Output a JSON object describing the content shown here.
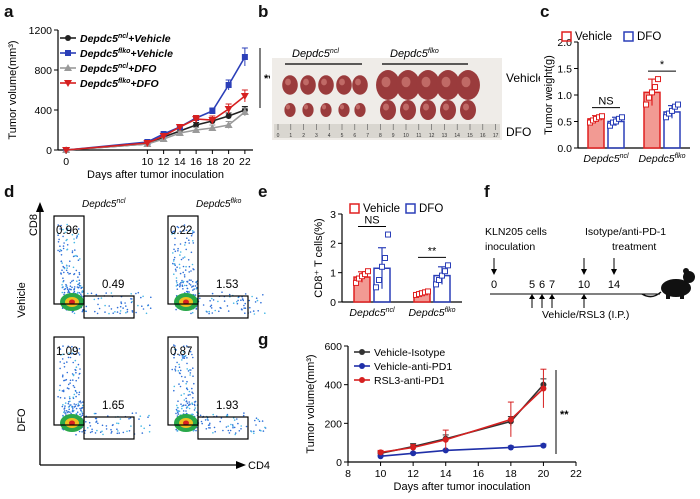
{
  "panel_labels": {
    "a": "a",
    "b": "b",
    "c": "c",
    "d": "d",
    "e": "e",
    "f": "f",
    "g": "g"
  },
  "chart_data": [
    {
      "id": "a",
      "type": "line",
      "ylabel": "Tumor volume(mm³)",
      "xlabel": "Days after tumor inoculation",
      "x": [
        0,
        10,
        12,
        14,
        16,
        18,
        20,
        22
      ],
      "xlim": [
        -1,
        23
      ],
      "ylim": [
        0,
        1200
      ],
      "yticks": [
        "0",
        "400",
        "800",
        "1200"
      ],
      "xticks": [
        "0",
        "10",
        "12",
        "14",
        "16",
        "18",
        "20",
        "22"
      ],
      "series": [
        {
          "name": "Depdc5ncl+Vehicle",
          "base": "Depdc5",
          "sup": "ncl",
          "suffix": "+Vehicle",
          "color": "#222222",
          "marker": "circle",
          "values": [
            0,
            60,
            130,
            190,
            250,
            290,
            340,
            400
          ],
          "errors": [
            0,
            10,
            15,
            20,
            25,
            25,
            30,
            35
          ]
        },
        {
          "name": "Depdc5flko+Vehicle",
          "base": "Depdc5",
          "sup": "flko",
          "suffix": "+Vehicle",
          "color": "#2b3fb8",
          "marker": "square",
          "values": [
            0,
            80,
            160,
            230,
            320,
            390,
            650,
            930
          ],
          "errors": [
            0,
            10,
            15,
            20,
            25,
            30,
            50,
            90
          ]
        },
        {
          "name": "Depdc5ncl+DFO",
          "base": "Depdc5",
          "sup": "ncl",
          "suffix": "+DFO",
          "color": "#9a9a9a",
          "marker": "triangle",
          "values": [
            0,
            60,
            110,
            170,
            200,
            220,
            250,
            380
          ],
          "errors": [
            0,
            10,
            15,
            20,
            25,
            30,
            35,
            40
          ]
        },
        {
          "name": "Depdc5flko+DFO",
          "base": "Depdc5",
          "sup": "flko",
          "suffix": "+DFO",
          "color": "#d62020",
          "marker": "triangledown",
          "values": [
            0,
            70,
            140,
            230,
            310,
            300,
            410,
            540
          ],
          "errors": [
            0,
            10,
            20,
            25,
            35,
            40,
            50,
            60
          ]
        }
      ],
      "annotation": "**"
    },
    {
      "id": "c",
      "type": "bar",
      "ylabel": "Tumor weight(g)",
      "ylim": [
        0,
        2.0
      ],
      "yticks": [
        "0.0",
        "0.5",
        "1.0",
        "1.5",
        "2.0"
      ],
      "legend": [
        "Vehicle",
        "DFO"
      ],
      "groups": [
        {
          "base": "Depdc5",
          "sup": "ncl",
          "vehicle": 0.55,
          "vehicle_err": 0.06,
          "dfo": 0.5,
          "dfo_err": 0.08,
          "vehicle_points": [
            0.48,
            0.52,
            0.55,
            0.58,
            0.6
          ],
          "dfo_points": [
            0.42,
            0.48,
            0.5,
            0.55,
            0.58
          ]
        },
        {
          "base": "Depdc5",
          "sup": "flko",
          "vehicle": 1.05,
          "vehicle_err": 0.25,
          "dfo": 0.68,
          "dfo_err": 0.12,
          "vehicle_points": [
            0.82,
            0.95,
            1.05,
            1.15,
            1.3
          ],
          "dfo_points": [
            0.58,
            0.65,
            0.7,
            0.78,
            0.82
          ]
        }
      ],
      "sig": [
        "NS",
        "*"
      ]
    },
    {
      "id": "e",
      "type": "bar",
      "ylabel": "CD8⁺ T cells(%)",
      "ylim": [
        0,
        3
      ],
      "yticks": [
        "0",
        "1",
        "2",
        "3"
      ],
      "legend": [
        "Vehicle",
        "DFO"
      ],
      "groups": [
        {
          "base": "Depdc5",
          "sup": "ncl",
          "vehicle": 0.85,
          "vehicle_err": 0.18,
          "dfo": 1.15,
          "dfo_err": 0.7,
          "vehicle_points": [
            0.65,
            0.8,
            0.88,
            0.95,
            1.05
          ],
          "dfo_points": [
            0.5,
            0.75,
            1.2,
            1.5,
            2.3
          ]
        },
        {
          "base": "Depdc5",
          "sup": "flko",
          "vehicle": 0.3,
          "vehicle_err": 0.06,
          "dfo": 0.9,
          "dfo_err": 0.3,
          "vehicle_points": [
            0.24,
            0.27,
            0.3,
            0.33,
            0.36
          ],
          "dfo_points": [
            0.6,
            0.75,
            0.9,
            1.05,
            1.25
          ]
        }
      ],
      "sig": [
        "NS",
        "**"
      ]
    },
    {
      "id": "g",
      "type": "line",
      "ylabel": "Tumor volume(mm³)",
      "xlabel": "Days after tumor inoculation",
      "x": [
        10,
        12,
        14,
        18,
        20
      ],
      "xlim": [
        8,
        22
      ],
      "ylim": [
        0,
        600
      ],
      "xticks": [
        "8",
        "10",
        "12",
        "14",
        "16",
        "18",
        "20",
        "22"
      ],
      "yticks": [
        "0",
        "200",
        "400",
        "600"
      ],
      "series": [
        {
          "name": "Vehicle-Isotype",
          "color": "#333333",
          "values": [
            45,
            80,
            120,
            210,
            400
          ],
          "errors": [
            10,
            15,
            20,
            25,
            30
          ]
        },
        {
          "name": "Vehicle-anti-PD1",
          "color": "#1f2fa8",
          "values": [
            30,
            45,
            60,
            75,
            85
          ],
          "errors": [
            5,
            5,
            5,
            8,
            8
          ]
        },
        {
          "name": "RSL3-anti-PD1",
          "color": "#d62020",
          "values": [
            50,
            75,
            115,
            220,
            380
          ],
          "errors": [
            10,
            15,
            50,
            90,
            100
          ]
        }
      ],
      "annotation": "**"
    }
  ],
  "panel_b": {
    "group_ncl": {
      "base": "Depdc5",
      "sup": "ncl"
    },
    "group_flko": {
      "base": "Depdc5",
      "sup": "flko"
    },
    "row_vehicle": "Vehicle",
    "row_dfo": "DFO",
    "ruler_numbers": [
      "0",
      "1",
      "2",
      "3",
      "4",
      "5",
      "6",
      "7",
      "8",
      "9",
      "10",
      "11",
      "12",
      "13",
      "14",
      "15",
      "16",
      "17"
    ]
  },
  "panel_d": {
    "col_ncl": {
      "base": "Depdc5",
      "sup": "ncl"
    },
    "col_flko": {
      "base": "Depdc5",
      "sup": "flko"
    },
    "row_vehicle": "Vehicle",
    "row_dfo": "DFO",
    "axis_y": "CD8",
    "axis_x": "CD4",
    "plots": [
      {
        "cd8": "0.96",
        "cd4": "0.49"
      },
      {
        "cd8": "0.22",
        "cd4": "1.53"
      },
      {
        "cd8": "1.09",
        "cd4": "1.65"
      },
      {
        "cd8": "0.87",
        "cd4": "1.93"
      }
    ]
  },
  "panel_f": {
    "cells": "KLN205 cells",
    "inoculation": "inoculation",
    "treat1": "Isotype/anti-PD-1",
    "treat2": "treatment",
    "days": [
      "0",
      "5",
      "6",
      "7",
      "10",
      "14"
    ],
    "bottom": "Vehicle/RSL3 (I.P.)"
  }
}
